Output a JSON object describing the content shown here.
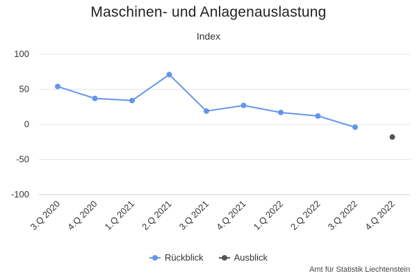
{
  "chart_data": {
    "type": "line",
    "title": "Maschinen- und Anlagenauslastung",
    "subtitle": "Index",
    "xlabel": "",
    "ylabel": "",
    "categories": [
      "3.Q 2020",
      "4.Q 2020",
      "1.Q 2021",
      "2.Q 2021",
      "3.Q 2021",
      "4.Q 2021",
      "1.Q 2022",
      "2.Q 2022",
      "3.Q 2022",
      "4.Q 2022"
    ],
    "ylim": [
      -100,
      100
    ],
    "yticks": [
      100,
      50,
      0,
      -50,
      -100
    ],
    "grid": true,
    "legend_position": "bottom",
    "series": [
      {
        "name": "Rückblick",
        "color": "#6495ED",
        "values": [
          54,
          37,
          34,
          71,
          19,
          27,
          17,
          12,
          -4,
          null
        ]
      },
      {
        "name": "Ausblick",
        "color": "#555555",
        "values": [
          null,
          null,
          null,
          null,
          null,
          null,
          null,
          null,
          null,
          -18
        ]
      }
    ],
    "credit": "Amt für Statistik Liechtenstein"
  }
}
